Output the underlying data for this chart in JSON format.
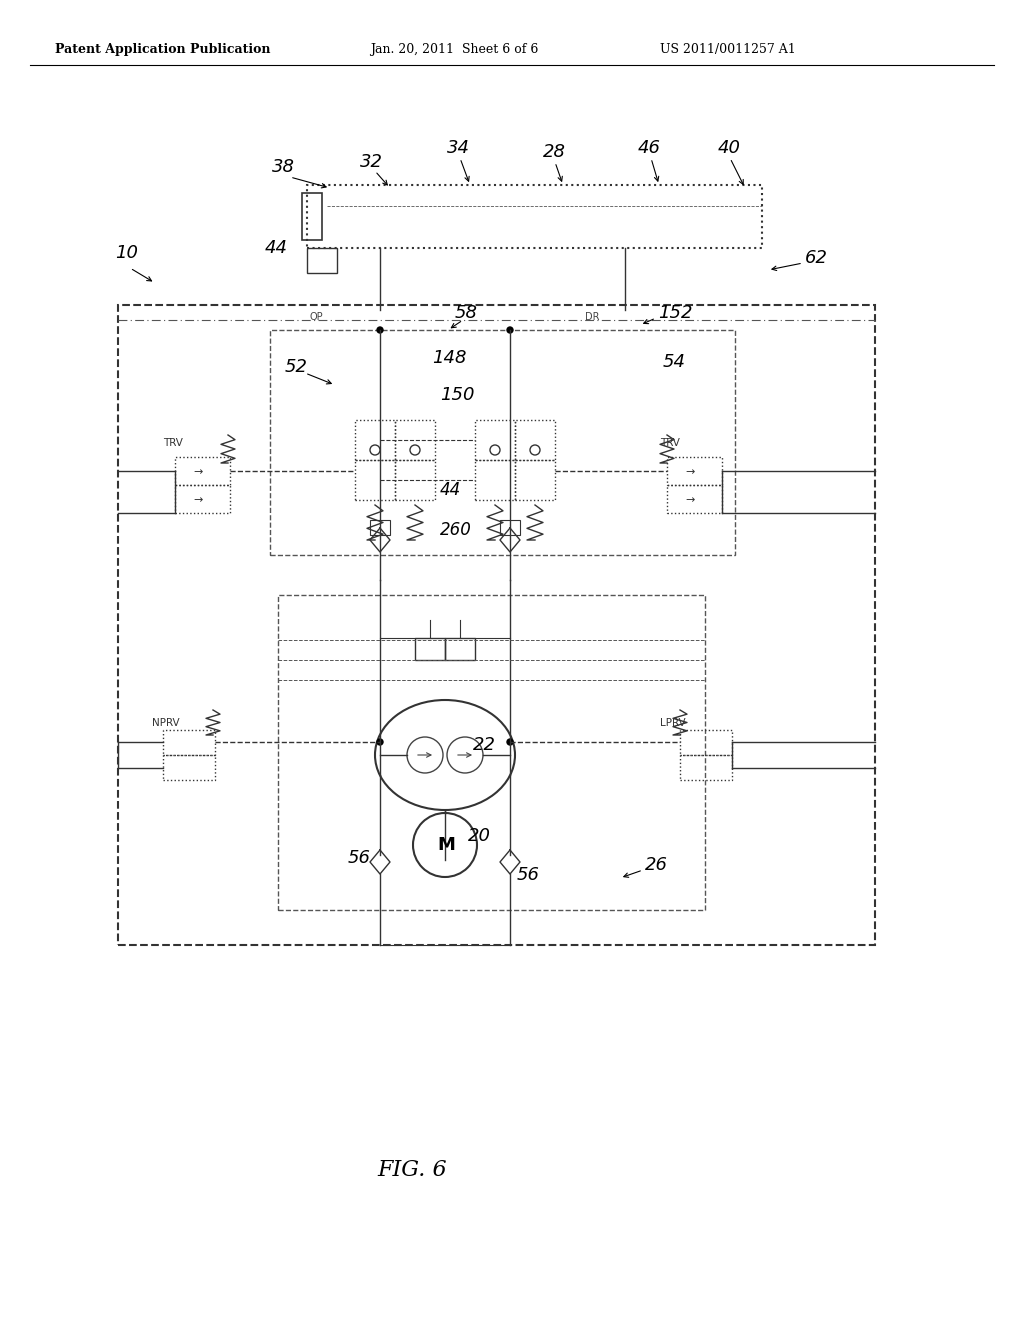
{
  "bg_color": "#ffffff",
  "header_left": "Patent Application Publication",
  "header_mid": "Jan. 20, 2011  Sheet 6 of 6",
  "header_right": "US 2011/0011257 A1",
  "footer_label": "FIG. 6"
}
